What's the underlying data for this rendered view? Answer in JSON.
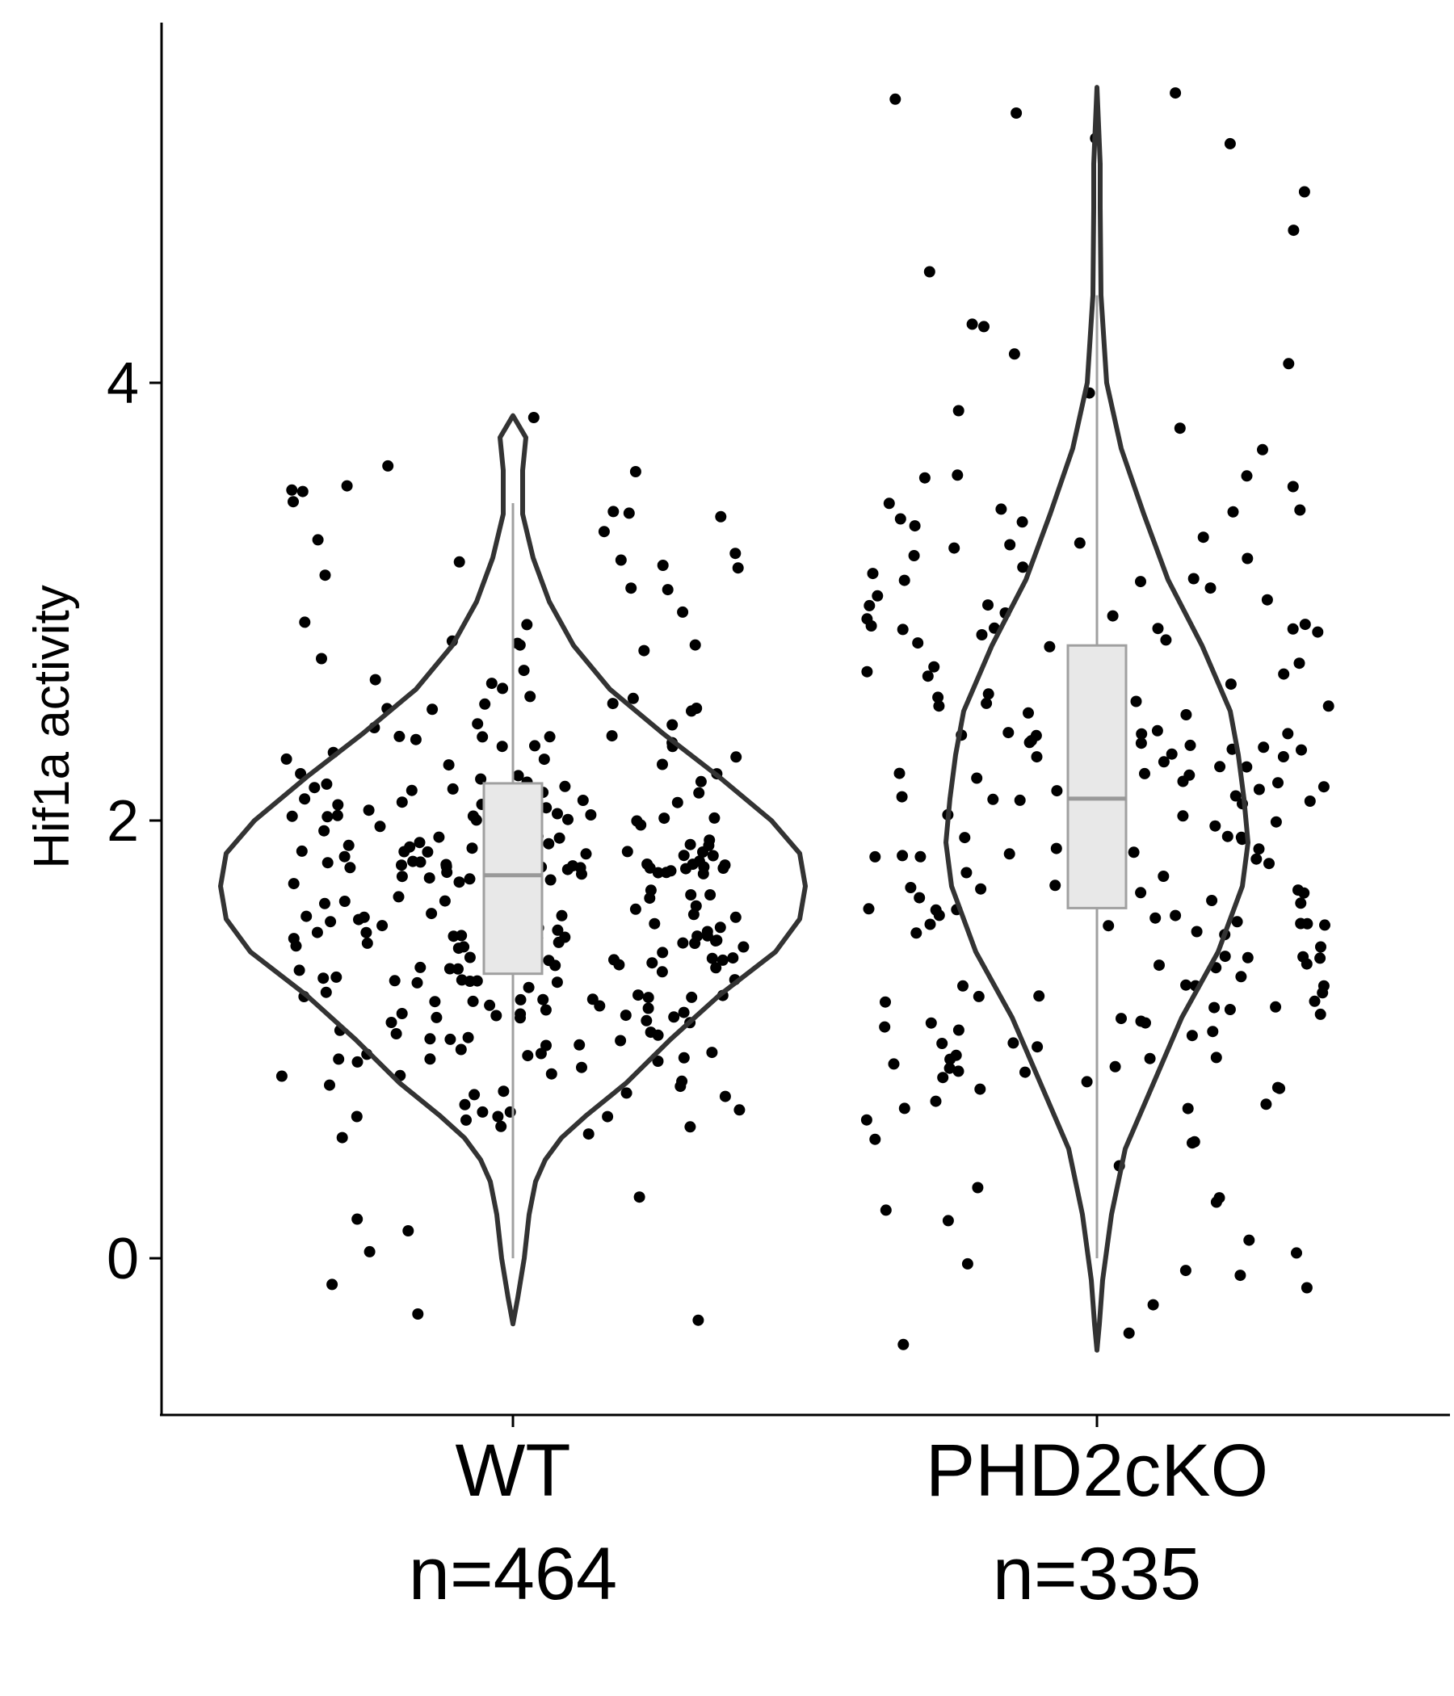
{
  "chart_data": {
    "type": "violin",
    "title": "",
    "xlabel": "",
    "ylabel": "Hif1a activity",
    "ylim": [
      -0.7,
      5.65
    ],
    "yticks": [
      0,
      2,
      4
    ],
    "grid": false,
    "categories": [
      "WT",
      "PHD2cKO"
    ],
    "group_counts": [
      "n=464",
      "n=335"
    ],
    "point_color": "#000000",
    "violin_color": "#333333",
    "box_fill": "#e8e8e8",
    "groups": [
      {
        "name": "WT",
        "count_label": "n=464",
        "n": 464,
        "violin_range": [
          -0.3,
          3.85
        ],
        "box": {
          "whisker_low": 0.0,
          "q1": 1.3,
          "median": 1.75,
          "q3": 2.17,
          "whisker_high": 3.45
        },
        "jitter_range": [
          -0.3,
          3.85
        ]
      },
      {
        "name": "PHD2cKO",
        "count_label": "n=335",
        "n": 335,
        "violin_range": [
          -0.42,
          5.35
        ],
        "box": {
          "whisker_low": 0.0,
          "q1": 1.6,
          "median": 2.1,
          "q3": 2.8,
          "whisker_high": 4.4
        },
        "jitter_range": [
          -0.42,
          5.35
        ]
      }
    ]
  }
}
